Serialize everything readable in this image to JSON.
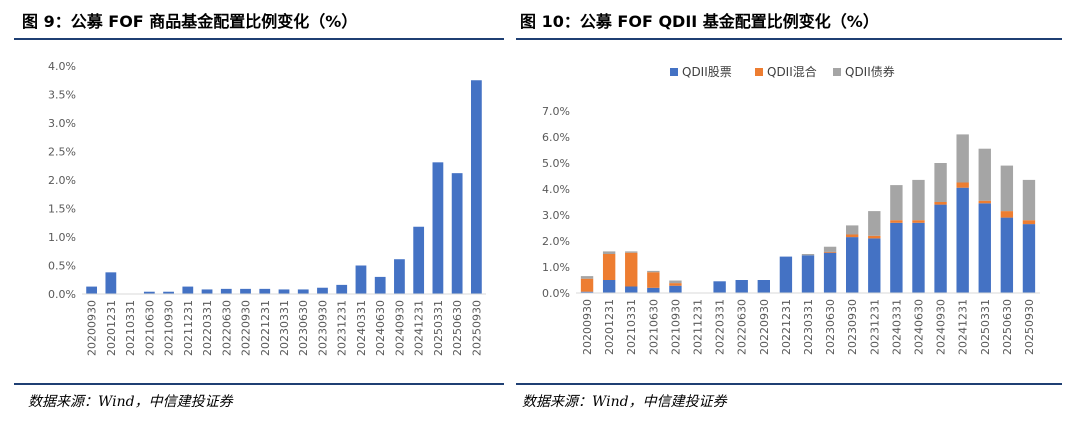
{
  "left": {
    "title": "图 9：公募 FOF 商品基金配置比例变化（%）",
    "source": "数据来源：Wind，中信建投证券"
  },
  "right": {
    "title": "图 10：公募 FOF QDII 基金配置比例变化（%）",
    "source": "数据来源：Wind，中信建投证券"
  },
  "colors": {
    "blue": "#4472c4",
    "orange": "#ed7d31",
    "gray": "#a5a5a5",
    "rule": "#1f3f73"
  },
  "chart_data": [
    {
      "type": "bar",
      "title": "",
      "categories": [
        "20200930",
        "20201231",
        "20210331",
        "20210630",
        "20210930",
        "20211231",
        "20220331",
        "20220630",
        "20220930",
        "20221231",
        "20230331",
        "20230630",
        "20230930",
        "20231231",
        "20240331",
        "20240630",
        "20240930",
        "20241231",
        "20250331",
        "20250630",
        "20250930"
      ],
      "values": [
        0.13,
        0.38,
        0.0,
        0.04,
        0.04,
        0.13,
        0.08,
        0.09,
        0.09,
        0.09,
        0.08,
        0.08,
        0.11,
        0.16,
        0.5,
        0.3,
        0.61,
        1.18,
        2.31,
        2.12,
        3.75
      ],
      "yticks": [
        "0.0%",
        "0.5%",
        "1.0%",
        "1.5%",
        "2.0%",
        "2.5%",
        "3.0%",
        "3.5%",
        "4.0%"
      ],
      "ylim": [
        0,
        4.0
      ],
      "grid": false,
      "legend": "none"
    },
    {
      "type": "bar",
      "stacked": true,
      "title": "",
      "categories": [
        "20200930",
        "20201231",
        "20210331",
        "20210630",
        "20210930",
        "20211231",
        "20220331",
        "20220630",
        "20220930",
        "20221231",
        "20230331",
        "20230630",
        "20230930",
        "20231231",
        "20240331",
        "20240630",
        "20240930",
        "20241231",
        "20250331",
        "20250630",
        "20250930"
      ],
      "series": [
        {
          "name": "QDII股票",
          "values": [
            0.05,
            0.5,
            0.25,
            0.2,
            0.28,
            0.0,
            0.45,
            0.5,
            0.5,
            1.4,
            1.45,
            1.55,
            2.15,
            2.1,
            2.7,
            2.7,
            3.4,
            4.05,
            3.45,
            2.9,
            2.65
          ]
        },
        {
          "name": "QDII混合",
          "values": [
            0.5,
            1.0,
            1.3,
            0.6,
            0.1,
            0.0,
            0.0,
            0.0,
            0.0,
            0.0,
            0.0,
            0.03,
            0.1,
            0.1,
            0.1,
            0.1,
            0.1,
            0.2,
            0.1,
            0.25,
            0.15
          ]
        },
        {
          "name": "QDII债券",
          "values": [
            0.1,
            0.1,
            0.05,
            0.05,
            0.1,
            0.0,
            0.0,
            0.0,
            0.0,
            0.0,
            0.05,
            0.2,
            0.35,
            0.95,
            1.35,
            1.55,
            1.5,
            1.85,
            2.0,
            1.75,
            1.55
          ]
        }
      ],
      "yticks": [
        "0.0%",
        "1.0%",
        "2.0%",
        "3.0%",
        "4.0%",
        "5.0%",
        "6.0%",
        "7.0%"
      ],
      "ylim": [
        0,
        7.0
      ],
      "grid": false,
      "legend": "top"
    }
  ]
}
